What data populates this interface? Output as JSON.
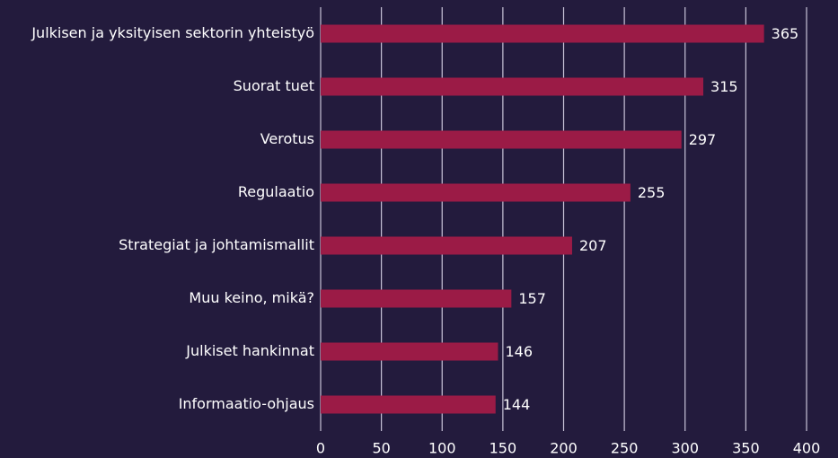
{
  "chart_data": {
    "type": "bar",
    "orientation": "horizontal",
    "categories": [
      "Julkisen ja yksityisen sektorin yhteistyö",
      "Suorat tuet",
      "Verotus",
      "Regulaatio",
      "Strategiat ja johtamismallit",
      "Muu keino, mikä?",
      "Julkiset hankinnat",
      "Informaatio-ohjaus"
    ],
    "values": [
      365,
      315,
      297,
      255,
      207,
      157,
      146,
      144
    ],
    "color": "#9b1b46",
    "xlim": [
      0,
      400
    ],
    "xticks": [
      0,
      50,
      100,
      150,
      200,
      250,
      300,
      350,
      400
    ],
    "grid": true
  }
}
